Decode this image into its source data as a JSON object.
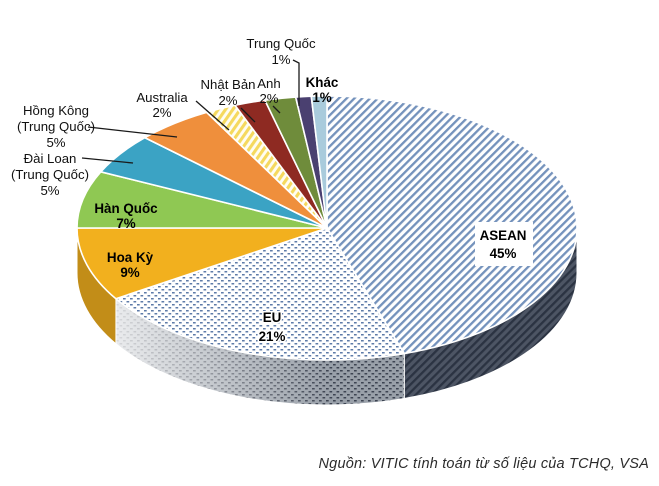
{
  "chart_data": {
    "type": "pie",
    "variant": "3d",
    "direction": "clockwise",
    "start_angle_deg": 0,
    "unit": "%",
    "legend": "none",
    "slices": [
      {
        "label": "ASEAN",
        "label_lines": [
          "ASEAN"
        ],
        "value": 45,
        "pct_label": "45%",
        "fill": "pattern:hatch-blue",
        "pattern_color": "#7492BC"
      },
      {
        "label": "EU",
        "label_lines": [
          "EU"
        ],
        "value": 21,
        "pct_label": "21%",
        "fill": "pattern:dots-blue",
        "pattern_color": "#5E7BA8"
      },
      {
        "label": "Hoa Kỳ",
        "label_lines": [
          "Hoa Kỳ"
        ],
        "value": 9,
        "pct_label": "9%",
        "fill": "#F2B01E"
      },
      {
        "label": "Hàn Quốc",
        "label_lines": [
          "Hàn Quốc"
        ],
        "value": 7,
        "pct_label": "7%",
        "fill": "#8FC853"
      },
      {
        "label": "Đài Loan (Trung Quốc)",
        "label_lines": [
          "Đài Loan",
          "(Trung Quốc)"
        ],
        "value": 5,
        "pct_label": "5%",
        "fill": "#3BA3C4"
      },
      {
        "label": "Hồng Kông (Trung Quốc)",
        "label_lines": [
          "Hồng Kông",
          "(Trung Quốc)"
        ],
        "value": 5,
        "pct_label": "5%",
        "fill": "#EF8F3C"
      },
      {
        "label": "Australia",
        "label_lines": [
          "Australia"
        ],
        "value": 2,
        "pct_label": "2%",
        "fill": "pattern:stripes-yellow",
        "pattern_color": "#F5D95E"
      },
      {
        "label": "Nhật Bản",
        "label_lines": [
          "Nhật Bản"
        ],
        "value": 2,
        "pct_label": "2%",
        "fill": "#8E2A22"
      },
      {
        "label": "Anh",
        "label_lines": [
          "Anh"
        ],
        "value": 2,
        "pct_label": "2%",
        "fill": "#6F8C3B"
      },
      {
        "label": "Trung Quốc",
        "label_lines": [
          "Trung Quốc"
        ],
        "value": 1,
        "pct_label": "1%",
        "fill": "#4A4070"
      },
      {
        "label": "Khác",
        "label_lines": [
          "Khác"
        ],
        "value": 1,
        "pct_label": "1%",
        "fill": "#A9CBDC"
      }
    ]
  },
  "source_note": "Nguồn: VITIC tính toán từ số liệu của TCHQ, VSA"
}
